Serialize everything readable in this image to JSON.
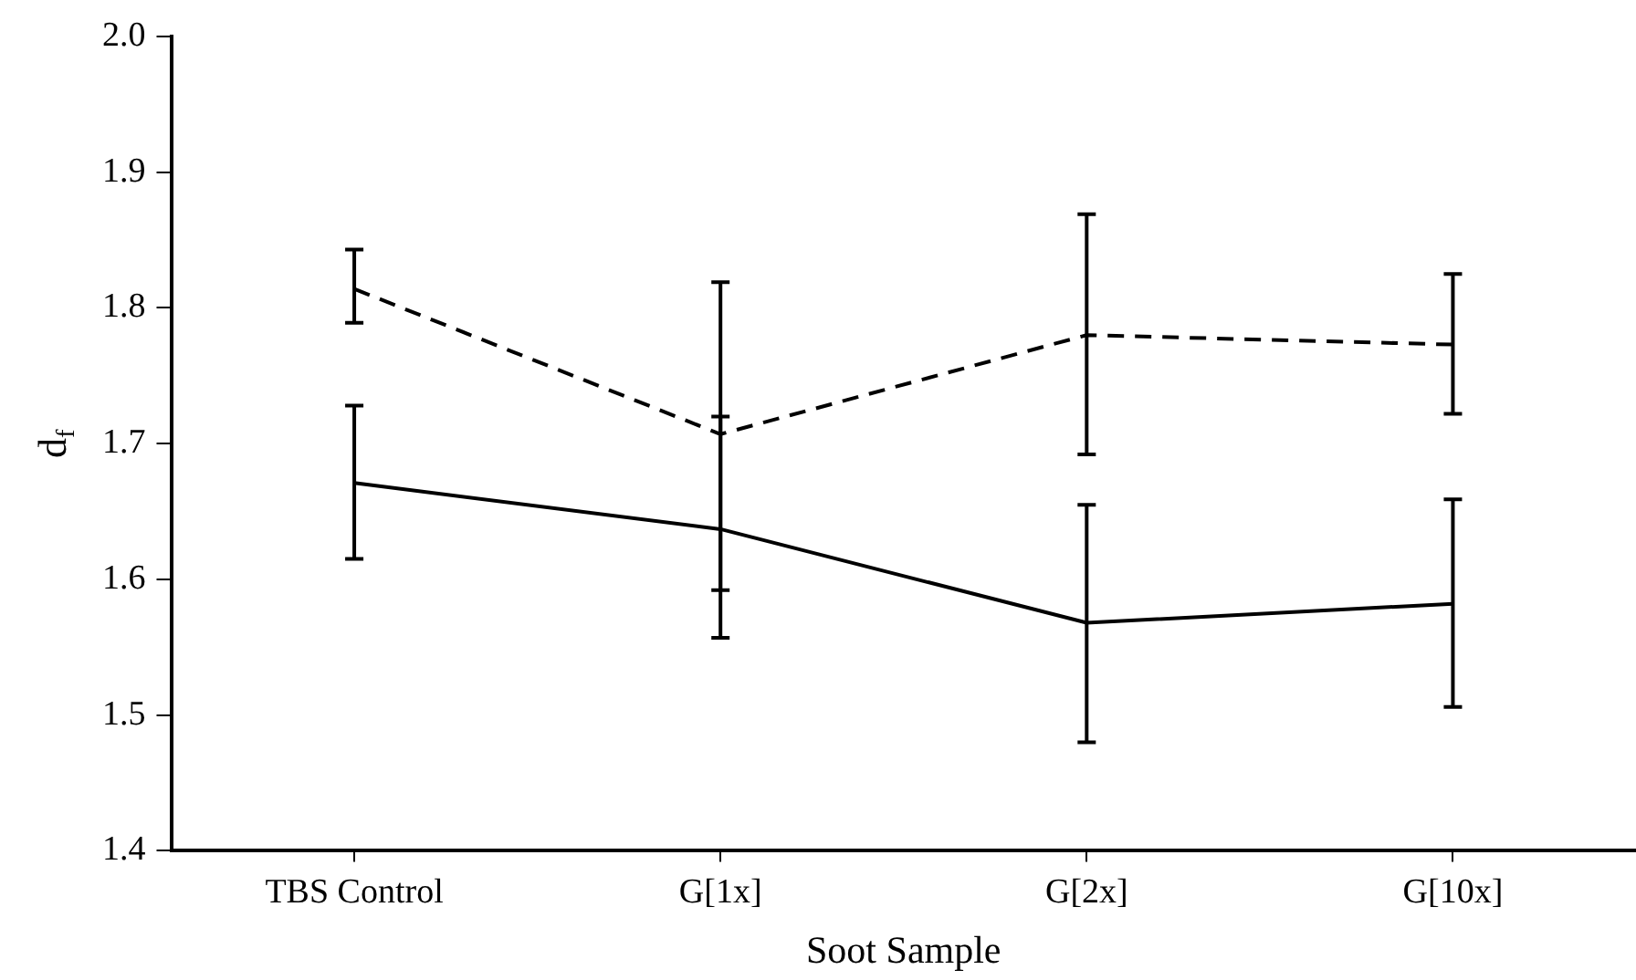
{
  "chart_data": {
    "type": "line",
    "xlabel": "Soot Sample",
    "ylabel": "d$_{f}$",
    "categories": [
      "TBS Control",
      "G[1x]",
      "G[2x]",
      "G[10x]"
    ],
    "series": [
      {
        "color": "#000000",
        "line_style": "dashed",
        "values": [
          1.814,
          1.707,
          1.78,
          1.773
        ],
        "errors": [
          [
            1.789,
            1.843
          ],
          [
            1.592,
            1.819
          ],
          [
            1.692,
            1.869
          ],
          [
            1.722,
            1.825
          ]
        ]
      },
      {
        "color": "#000000",
        "line_style": "solid",
        "values": [
          1.671,
          1.637,
          1.568,
          1.582
        ],
        "errors": [
          [
            1.615,
            1.728
          ],
          [
            1.557,
            1.72
          ],
          [
            1.48,
            1.655
          ],
          [
            1.506,
            1.659
          ]
        ]
      }
    ],
    "ylim": [
      1.4,
      2.0
    ],
    "yticks": [
      1.4,
      1.5,
      1.6,
      1.7,
      1.8,
      1.9,
      {
        "value": 2,
        "label": "2.0"
      }
    ],
    "grid": false,
    "legend": false,
    "marker": "none"
  }
}
